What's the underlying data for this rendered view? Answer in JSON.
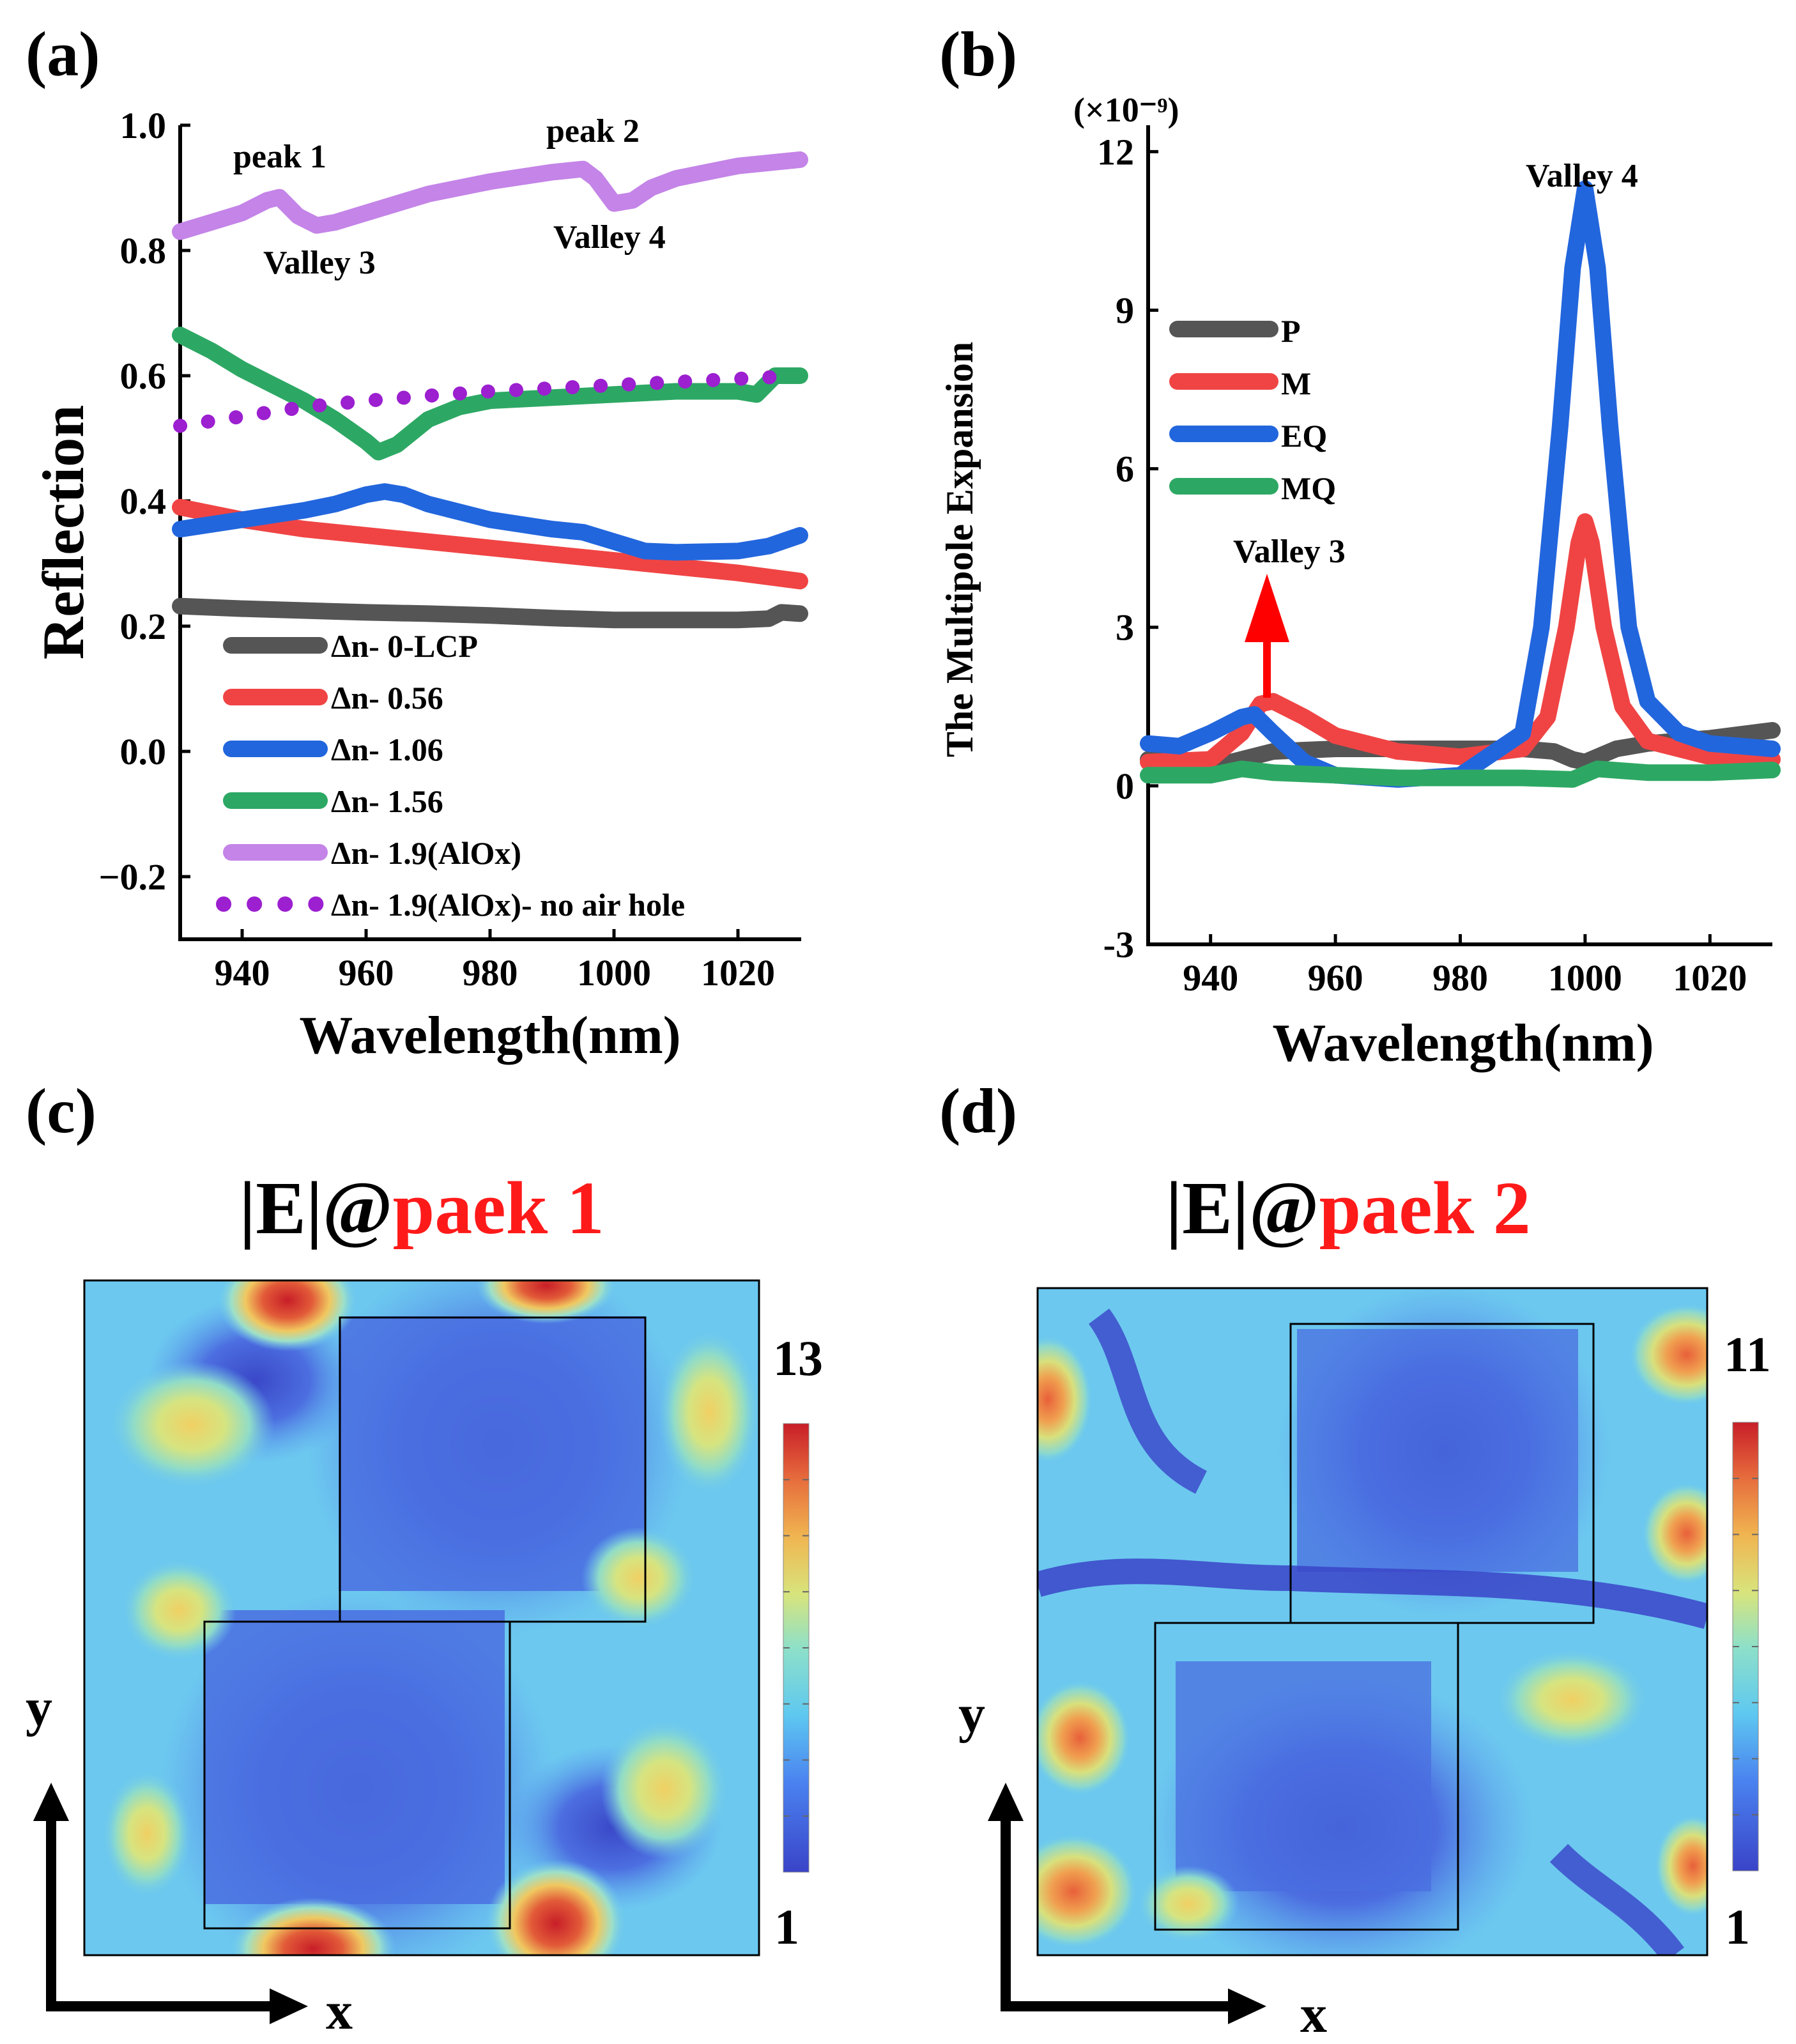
{
  "colors": {
    "black": "#555555",
    "red": "#f04444",
    "blue": "#2266dd",
    "green": "#2da864",
    "purple": "#c484e8",
    "darkpurple": "#9c1fd0",
    "arrow_red": "#ff0000"
  },
  "chart_data": [
    {
      "panel": "(a)",
      "type": "line",
      "xlabel": "Wavelength(nm)",
      "ylabel": "Reflection",
      "xlim": [
        930,
        1030
      ],
      "ylim": [
        -0.3,
        1.0
      ],
      "xticks": [
        940,
        960,
        980,
        1000,
        1020
      ],
      "yticks": [
        -0.2,
        0.0,
        0.2,
        0.4,
        0.6,
        0.8,
        1.0
      ],
      "ytick_labels": [
        "−0.2",
        "0.0",
        "0.2",
        "0.4",
        "0.6",
        "0.8",
        "1.0"
      ],
      "annotations": [
        "peak 1",
        "peak 2",
        "Valley 3",
        "Valley 4"
      ],
      "series": [
        {
          "name": "Δn- 0-LCP",
          "color": "#555555",
          "style": "solid",
          "x": [
            930,
            940,
            950,
            960,
            970,
            980,
            990,
            1000,
            1010,
            1020,
            1025,
            1027,
            1030
          ],
          "y": [
            0.232,
            0.228,
            0.225,
            0.222,
            0.22,
            0.217,
            0.213,
            0.21,
            0.21,
            0.21,
            0.212,
            0.222,
            0.22
          ]
        },
        {
          "name": "Δn- 0.56",
          "color": "#f04444",
          "style": "solid",
          "x": [
            930,
            940,
            950,
            960,
            970,
            980,
            990,
            1000,
            1010,
            1020,
            1030
          ],
          "y": [
            0.39,
            0.37,
            0.355,
            0.345,
            0.335,
            0.325,
            0.315,
            0.305,
            0.295,
            0.285,
            0.272
          ]
        },
        {
          "name": "Δn- 1.06",
          "color": "#2266dd",
          "style": "solid",
          "x": [
            930,
            940,
            950,
            955,
            960,
            963,
            966,
            970,
            980,
            990,
            995,
            1000,
            1005,
            1010,
            1020,
            1025,
            1030
          ],
          "y": [
            0.355,
            0.37,
            0.385,
            0.395,
            0.41,
            0.415,
            0.41,
            0.395,
            0.37,
            0.355,
            0.35,
            0.335,
            0.32,
            0.318,
            0.32,
            0.328,
            0.345
          ]
        },
        {
          "name": "Δn- 1.56",
          "color": "#2da864",
          "style": "solid",
          "x": [
            930,
            935,
            940,
            945,
            950,
            955,
            960,
            962,
            965,
            970,
            975,
            980,
            990,
            1000,
            1010,
            1020,
            1023,
            1026,
            1030
          ],
          "y": [
            0.665,
            0.64,
            0.61,
            0.585,
            0.56,
            0.53,
            0.495,
            0.478,
            0.49,
            0.53,
            0.55,
            0.56,
            0.565,
            0.57,
            0.575,
            0.575,
            0.57,
            0.6,
            0.6
          ]
        },
        {
          "name": "Δn- 1.9(AlOx)",
          "color": "#c484e8",
          "style": "solid",
          "x": [
            930,
            935,
            940,
            944,
            946,
            949,
            952,
            955,
            960,
            970,
            980,
            990,
            995,
            997,
            1000,
            1003,
            1006,
            1010,
            1020,
            1030
          ],
          "y": [
            0.83,
            0.845,
            0.86,
            0.88,
            0.885,
            0.855,
            0.84,
            0.845,
            0.86,
            0.89,
            0.91,
            0.925,
            0.93,
            0.915,
            0.875,
            0.88,
            0.9,
            0.915,
            0.935,
            0.945
          ]
        },
        {
          "name": "Δn- 1.9(AlOx)- no air hole",
          "color": "#9c1fd0",
          "style": "dotted",
          "x": [
            930,
            940,
            950,
            960,
            970,
            980,
            990,
            1000,
            1010,
            1020,
            1026
          ],
          "y": [
            0.52,
            0.535,
            0.55,
            0.56,
            0.568,
            0.575,
            0.58,
            0.585,
            0.59,
            0.595,
            0.598
          ]
        }
      ]
    },
    {
      "panel": "(b)",
      "type": "line",
      "xlabel": "Wavelength(nm)",
      "ylabel": "The Multipole Expansion",
      "scale_label": "(×10⁻⁹)",
      "xlim": [
        930,
        1030
      ],
      "ylim": [
        -3,
        12.5
      ],
      "xticks": [
        940,
        960,
        980,
        1000,
        1020
      ],
      "yticks": [
        -3,
        0,
        3,
        6,
        9,
        12
      ],
      "annotations": [
        "Valley 3",
        "Valley 4"
      ],
      "series": [
        {
          "name": "P",
          "color": "#555555",
          "x": [
            930,
            940,
            945,
            950,
            960,
            970,
            980,
            990,
            995,
            998,
            1000,
            1005,
            1010,
            1020,
            1030
          ],
          "y": [
            0.5,
            0.35,
            0.5,
            0.65,
            0.7,
            0.7,
            0.7,
            0.7,
            0.65,
            0.5,
            0.45,
            0.7,
            0.8,
            0.9,
            1.05
          ]
        },
        {
          "name": "M",
          "color": "#f04444",
          "x": [
            930,
            940,
            945,
            948,
            950,
            955,
            960,
            970,
            980,
            990,
            994,
            997,
            999,
            1000,
            1001,
            1003,
            1006,
            1010,
            1020,
            1030
          ],
          "y": [
            0.45,
            0.5,
            1.0,
            1.55,
            1.6,
            1.3,
            0.95,
            0.65,
            0.55,
            0.7,
            1.3,
            3.0,
            4.6,
            5.0,
            4.6,
            3.0,
            1.5,
            0.85,
            0.55,
            0.5
          ]
        },
        {
          "name": "EQ",
          "color": "#2266dd",
          "x": [
            930,
            935,
            940,
            945,
            947,
            950,
            955,
            960,
            970,
            980,
            990,
            993,
            996,
            998,
            1000,
            1002,
            1004,
            1007,
            1010,
            1015,
            1020,
            1030
          ],
          "y": [
            0.8,
            0.75,
            1.0,
            1.3,
            1.35,
            1.0,
            0.45,
            0.2,
            0.12,
            0.2,
            1.0,
            3.0,
            6.8,
            9.8,
            11.3,
            9.8,
            6.8,
            3.0,
            1.6,
            1.0,
            0.8,
            0.7
          ]
        },
        {
          "name": "MQ",
          "color": "#2da864",
          "x": [
            930,
            940,
            945,
            950,
            960,
            970,
            980,
            990,
            998,
            1002,
            1010,
            1020,
            1030
          ],
          "y": [
            0.2,
            0.2,
            0.32,
            0.25,
            0.2,
            0.15,
            0.15,
            0.15,
            0.12,
            0.32,
            0.25,
            0.25,
            0.3
          ]
        }
      ]
    },
    {
      "panel": "(c)",
      "type": "heatmap",
      "title_prefix": "|E|@",
      "title_highlight": "paek 1",
      "colorbar_max": "13",
      "colorbar_min": "1",
      "axis_x": "x",
      "axis_y": "y"
    },
    {
      "panel": "(d)",
      "type": "heatmap",
      "title_prefix": "|E|@",
      "title_highlight": "paek 2",
      "colorbar_max": "11",
      "colorbar_min": "1",
      "axis_x": "x",
      "axis_y": "y"
    }
  ]
}
